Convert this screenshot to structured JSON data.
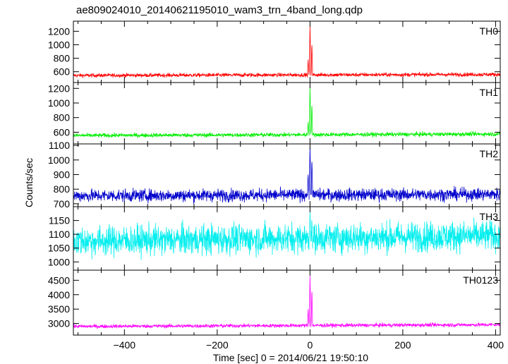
{
  "chart_data": {
    "type": "line",
    "title": "ae809024010_20140621195010_wam3_trn_4band_long.qdp",
    "xlabel": "Time [sec] 0 = 2014/06/21 19:50:10",
    "ylabel": "Counts/sec",
    "xlim": [
      -510,
      410
    ],
    "x_ticks": [
      -400,
      -200,
      0,
      200,
      400
    ],
    "x_tick_labels": [
      "−400",
      "−200",
      "0",
      "200",
      "400"
    ],
    "panels": [
      {
        "name": "TH0",
        "color": "#ff0000",
        "ylim": [
          440,
          1350
        ],
        "y_ticks": [
          600,
          800,
          1000,
          1200
        ],
        "y_tick_labels": [
          "600",
          "800",
          "1000",
          "1200"
        ],
        "baseline_start": 545,
        "baseline_end": 560,
        "noise": 20,
        "peaks": [
          [
            0,
            1330
          ],
          [
            4,
            1050
          ],
          [
            -4,
            780
          ]
        ]
      },
      {
        "name": "TH1",
        "color": "#00ee00",
        "ylim": [
          440,
          1280
        ],
        "y_ticks": [
          600,
          800,
          1000,
          1200
        ],
        "y_tick_labels": [
          "600",
          "800",
          "1000",
          "1200"
        ],
        "baseline_start": 555,
        "baseline_end": 575,
        "noise": 20,
        "peaks": [
          [
            0,
            1270
          ],
          [
            4,
            1010
          ],
          [
            -4,
            740
          ]
        ]
      },
      {
        "name": "TH2",
        "color": "#0000cc",
        "ylim": [
          680,
          1110
        ],
        "y_ticks": [
          700,
          800,
          900,
          1000,
          1100
        ],
        "y_tick_labels": [
          "700",
          "800",
          "900",
          "1000",
          "1100"
        ],
        "baseline_start": 755,
        "baseline_end": 765,
        "noise": 30,
        "peaks": [
          [
            0,
            1110
          ],
          [
            4,
            1020
          ],
          [
            -4,
            900
          ]
        ]
      },
      {
        "name": "TH3",
        "color": "#00eeee",
        "ylim": [
          970,
          1200
        ],
        "y_ticks": [
          1000,
          1050,
          1100,
          1150
        ],
        "y_tick_labels": [
          "1000",
          "1050",
          "1100",
          "1150"
        ],
        "baseline_start": 1075,
        "baseline_end": 1095,
        "noise": 38,
        "peaks": [
          [
            0,
            1190
          ],
          [
            4,
            1150
          ]
        ]
      },
      {
        "name": "TH0123",
        "color": "#ff00ff",
        "ylim": [
          2600,
          4850
        ],
        "y_ticks": [
          3000,
          3500,
          4000,
          4500
        ],
        "y_tick_labels": [
          "3000",
          "3500",
          "4000",
          "4500"
        ],
        "baseline_start": 2900,
        "baseline_end": 2960,
        "noise": 45,
        "peaks": [
          [
            0,
            4750
          ],
          [
            4,
            4250
          ],
          [
            -4,
            3500
          ]
        ]
      }
    ]
  }
}
